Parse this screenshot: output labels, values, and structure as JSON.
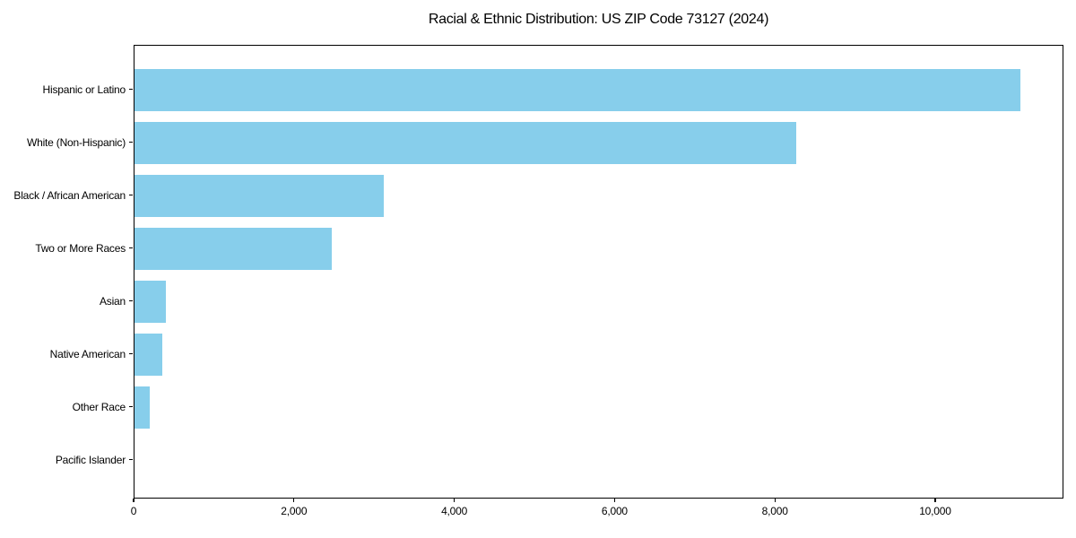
{
  "chart_data": {
    "type": "bar",
    "orientation": "horizontal",
    "title": "Racial & Ethnic Distribution: US ZIP Code 73127 (2024)",
    "categories": [
      "Hispanic or Latino",
      "White (Non-Hispanic)",
      "Black / African American",
      "Two or More Races",
      "Asian",
      "Native American",
      "Other Race",
      "Pacific Islander"
    ],
    "values": [
      11050,
      8260,
      3110,
      2465,
      395,
      350,
      190,
      0
    ],
    "xlabel": "",
    "ylabel": "",
    "xlim": [
      0,
      11600
    ],
    "xticks": [
      0,
      2000,
      4000,
      6000,
      8000,
      10000
    ],
    "xtick_labels": [
      "0",
      "2,000",
      "4,000",
      "6,000",
      "8,000",
      "10,000"
    ],
    "bar_color": "#87CEEB",
    "axis_color": "#000000",
    "grid": false,
    "legend": false
  }
}
